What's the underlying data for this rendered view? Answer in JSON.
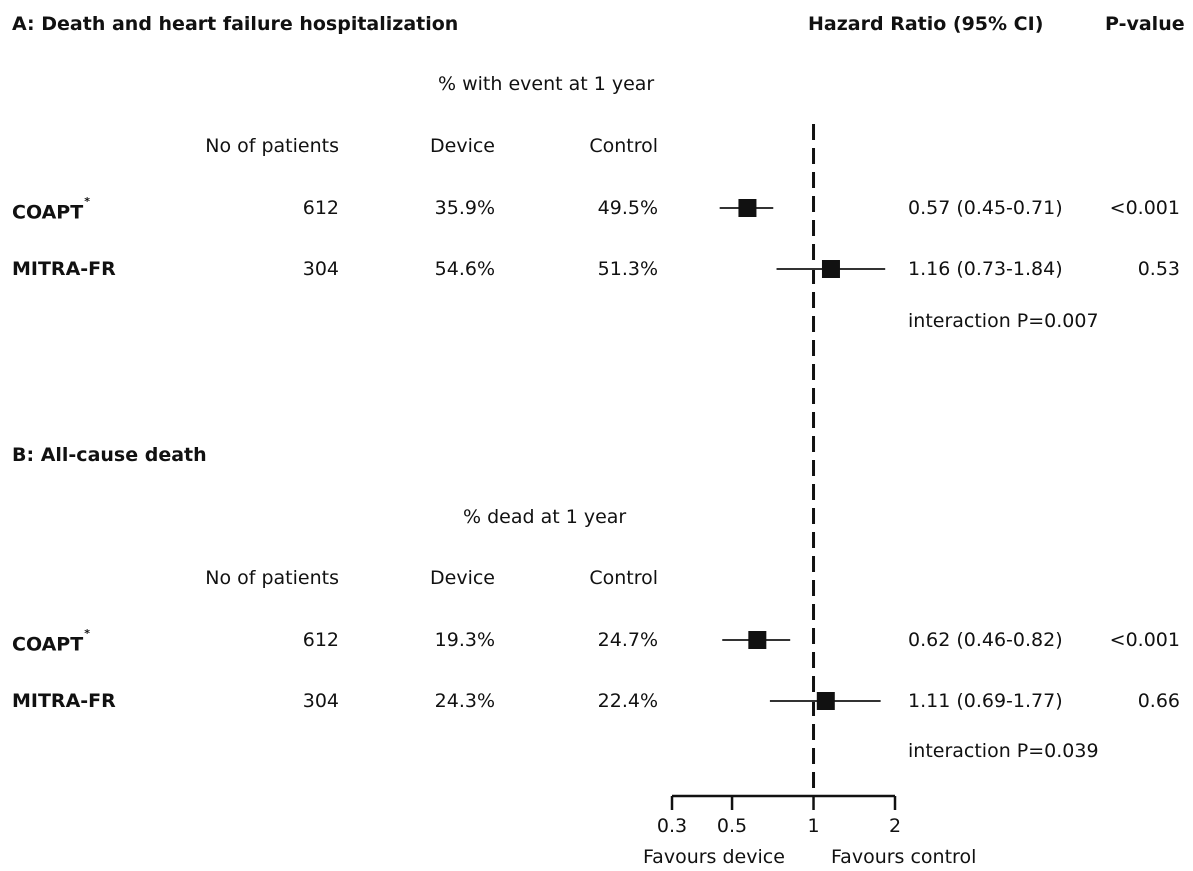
{
  "header": {
    "hr_label": "Hazard Ratio (95% CI)",
    "p_label": "P-value"
  },
  "panels": [
    {
      "title": "A: Death and heart failure hospitalization",
      "event_label": "% with event at 1 year",
      "col_patients": "No of patients",
      "col_device": "Device",
      "col_control": "Control",
      "rows": [
        {
          "name": "COAPT",
          "asterisk": "*",
          "patients": "612",
          "device": "35.9%",
          "control": "49.5%",
          "hr_text": "0.57 (0.45-0.71)",
          "p": "<0.001"
        },
        {
          "name": "MITRA-FR",
          "asterisk": "",
          "patients": "304",
          "device": "54.6%",
          "control": "51.3%",
          "hr_text": "1.16 (0.73-1.84)",
          "p": "0.53"
        }
      ],
      "interaction": "interaction P=0.007"
    },
    {
      "title": "B: All-cause death",
      "event_label": "% dead at 1 year",
      "col_patients": "No of patients",
      "col_device": "Device",
      "col_control": "Control",
      "rows": [
        {
          "name": "COAPT",
          "asterisk": "*",
          "patients": "612",
          "device": "19.3%",
          "control": "24.7%",
          "hr_text": "0.62 (0.46-0.82)",
          "p": "<0.001"
        },
        {
          "name": "MITRA-FR",
          "asterisk": "",
          "patients": "304",
          "device": "24.3%",
          "control": "22.4%",
          "hr_text": "1.11 (0.69-1.77)",
          "p": "0.66"
        }
      ],
      "interaction": "interaction P=0.039"
    }
  ],
  "axis": {
    "favours_left": "Favours device",
    "favours_right": "Favours control"
  },
  "chart_data": {
    "type": "forest",
    "scale": "log",
    "xlim": [
      0.3,
      2
    ],
    "ticks": [
      0.3,
      0.5,
      1,
      2
    ],
    "tick_labels": [
      "0.3",
      "0.5",
      "1",
      "2"
    ],
    "reference_line": 1,
    "series": [
      {
        "panel": "A",
        "name": "COAPT",
        "hr": 0.57,
        "lo": 0.45,
        "hi": 0.71
      },
      {
        "panel": "A",
        "name": "MITRA-FR",
        "hr": 1.16,
        "lo": 0.73,
        "hi": 1.84
      },
      {
        "panel": "B",
        "name": "COAPT",
        "hr": 0.62,
        "lo": 0.46,
        "hi": 0.82
      },
      {
        "panel": "B",
        "name": "MITRA-FR",
        "hr": 1.11,
        "lo": 0.69,
        "hi": 1.77
      }
    ]
  }
}
